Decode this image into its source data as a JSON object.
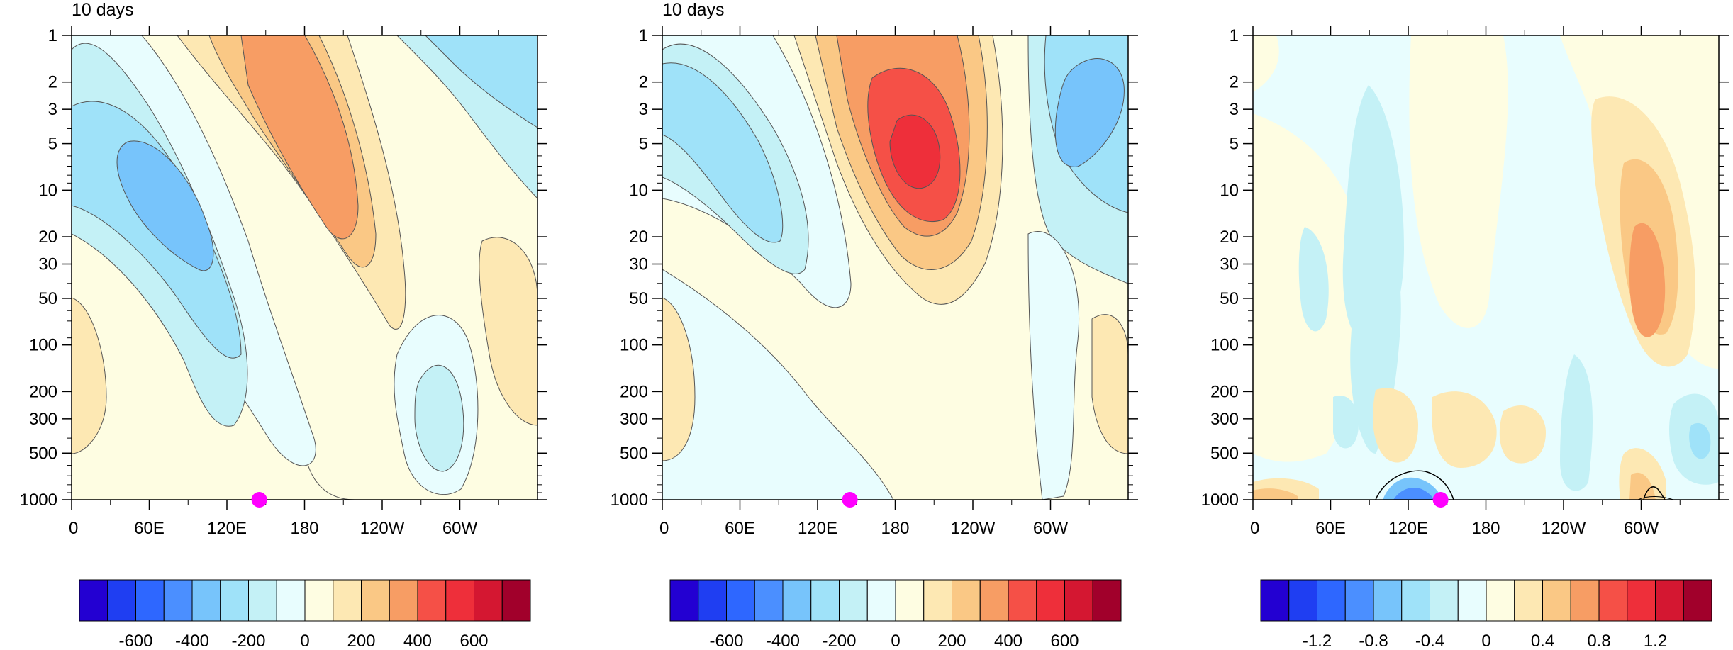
{
  "colorbar_colors": [
    "#2300d2",
    "#1f3ef2",
    "#2e67ff",
    "#4b8fff",
    "#77c4fb",
    "#9fe2f9",
    "#c4f1f6",
    "#e8fdfe",
    "#fefde2",
    "#fde8b3",
    "#fac885",
    "#f79d64",
    "#f55047",
    "#ee2f3a",
    "#d41731",
    "#a1002b"
  ],
  "chart_data": [
    {
      "type": "contour",
      "title": "10 days",
      "x_ticks": [
        "0",
        "60E",
        "120E",
        "180",
        "120W",
        "60W"
      ],
      "y_ticks": [
        "1",
        "2",
        "3",
        "5",
        "10",
        "20",
        "30",
        "50",
        "100",
        "200",
        "300",
        "500",
        "1000"
      ],
      "y_scale": "log",
      "colorbar_labels": [
        "-600",
        "-400",
        "-200",
        "0",
        "200",
        "400",
        "600"
      ],
      "marker": {
        "x_lon": 145,
        "y_hPa": 1000,
        "color": "#ff00ff"
      }
    },
    {
      "type": "contour",
      "title": "10 days",
      "x_ticks": [
        "0",
        "60E",
        "120E",
        "180",
        "120W",
        "60W"
      ],
      "y_ticks": [
        "1",
        "2",
        "3",
        "5",
        "10",
        "20",
        "30",
        "50",
        "100",
        "200",
        "300",
        "500",
        "1000"
      ],
      "y_scale": "log",
      "colorbar_labels": [
        "-600",
        "-400",
        "-200",
        "0",
        "200",
        "400",
        "600"
      ],
      "marker": {
        "x_lon": 145,
        "y_hPa": 1000,
        "color": "#ff00ff"
      }
    },
    {
      "type": "contour",
      "title": "",
      "x_ticks": [
        "0",
        "60E",
        "120E",
        "180",
        "120W",
        "60W"
      ],
      "y_ticks": [
        "1",
        "2",
        "3",
        "5",
        "10",
        "20",
        "30",
        "50",
        "100",
        "200",
        "300",
        "500",
        "1000"
      ],
      "y_scale": "log",
      "colorbar_labels": [
        "-1.2",
        "-0.8",
        "-0.4",
        "0",
        "0.4",
        "0.8",
        "1.2"
      ],
      "marker": {
        "x_lon": 145,
        "y_hPa": 1000,
        "color": "#ff00ff"
      }
    }
  ]
}
